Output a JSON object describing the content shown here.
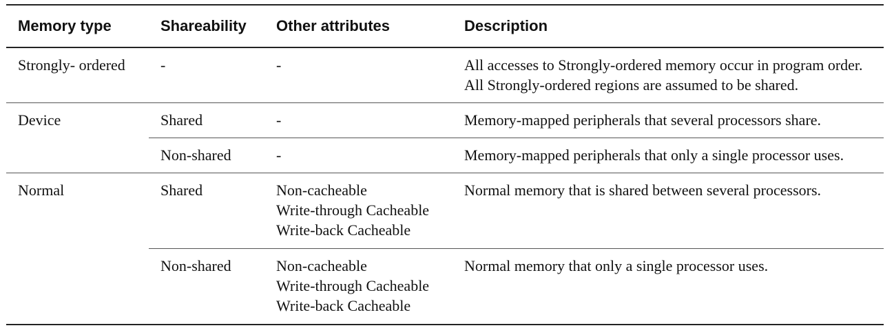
{
  "table": {
    "headers": [
      "Memory type",
      "Shareability",
      "Other attributes",
      "Description"
    ],
    "rows": {
      "strongly_ordered": {
        "type": "Strongly- ordered",
        "shareability": "-",
        "attributes": "-",
        "description": "All accesses to Strongly-ordered memory occur in program order. All Strongly-ordered regions are assumed to be shared."
      },
      "device": {
        "type": "Device",
        "shared": {
          "shareability": "Shared",
          "attributes": "-",
          "description": "Memory-mapped peripherals that several processors share."
        },
        "non_shared": {
          "shareability": "Non-shared",
          "attributes": "-",
          "description": "Memory-mapped peripherals that only a single processor uses."
        }
      },
      "normal": {
        "type": "Normal",
        "shared": {
          "shareability": "Shared",
          "attributes": [
            "Non-cacheable",
            "Write-through Cacheable",
            "Write-back Cacheable"
          ],
          "description": "Normal memory that is shared between several processors."
        },
        "non_shared": {
          "shareability": "Non-shared",
          "attributes": [
            "Non-cacheable",
            "Write-through Cacheable",
            "Write-back Cacheable"
          ],
          "description": "Normal memory that only a single processor uses."
        }
      }
    }
  }
}
